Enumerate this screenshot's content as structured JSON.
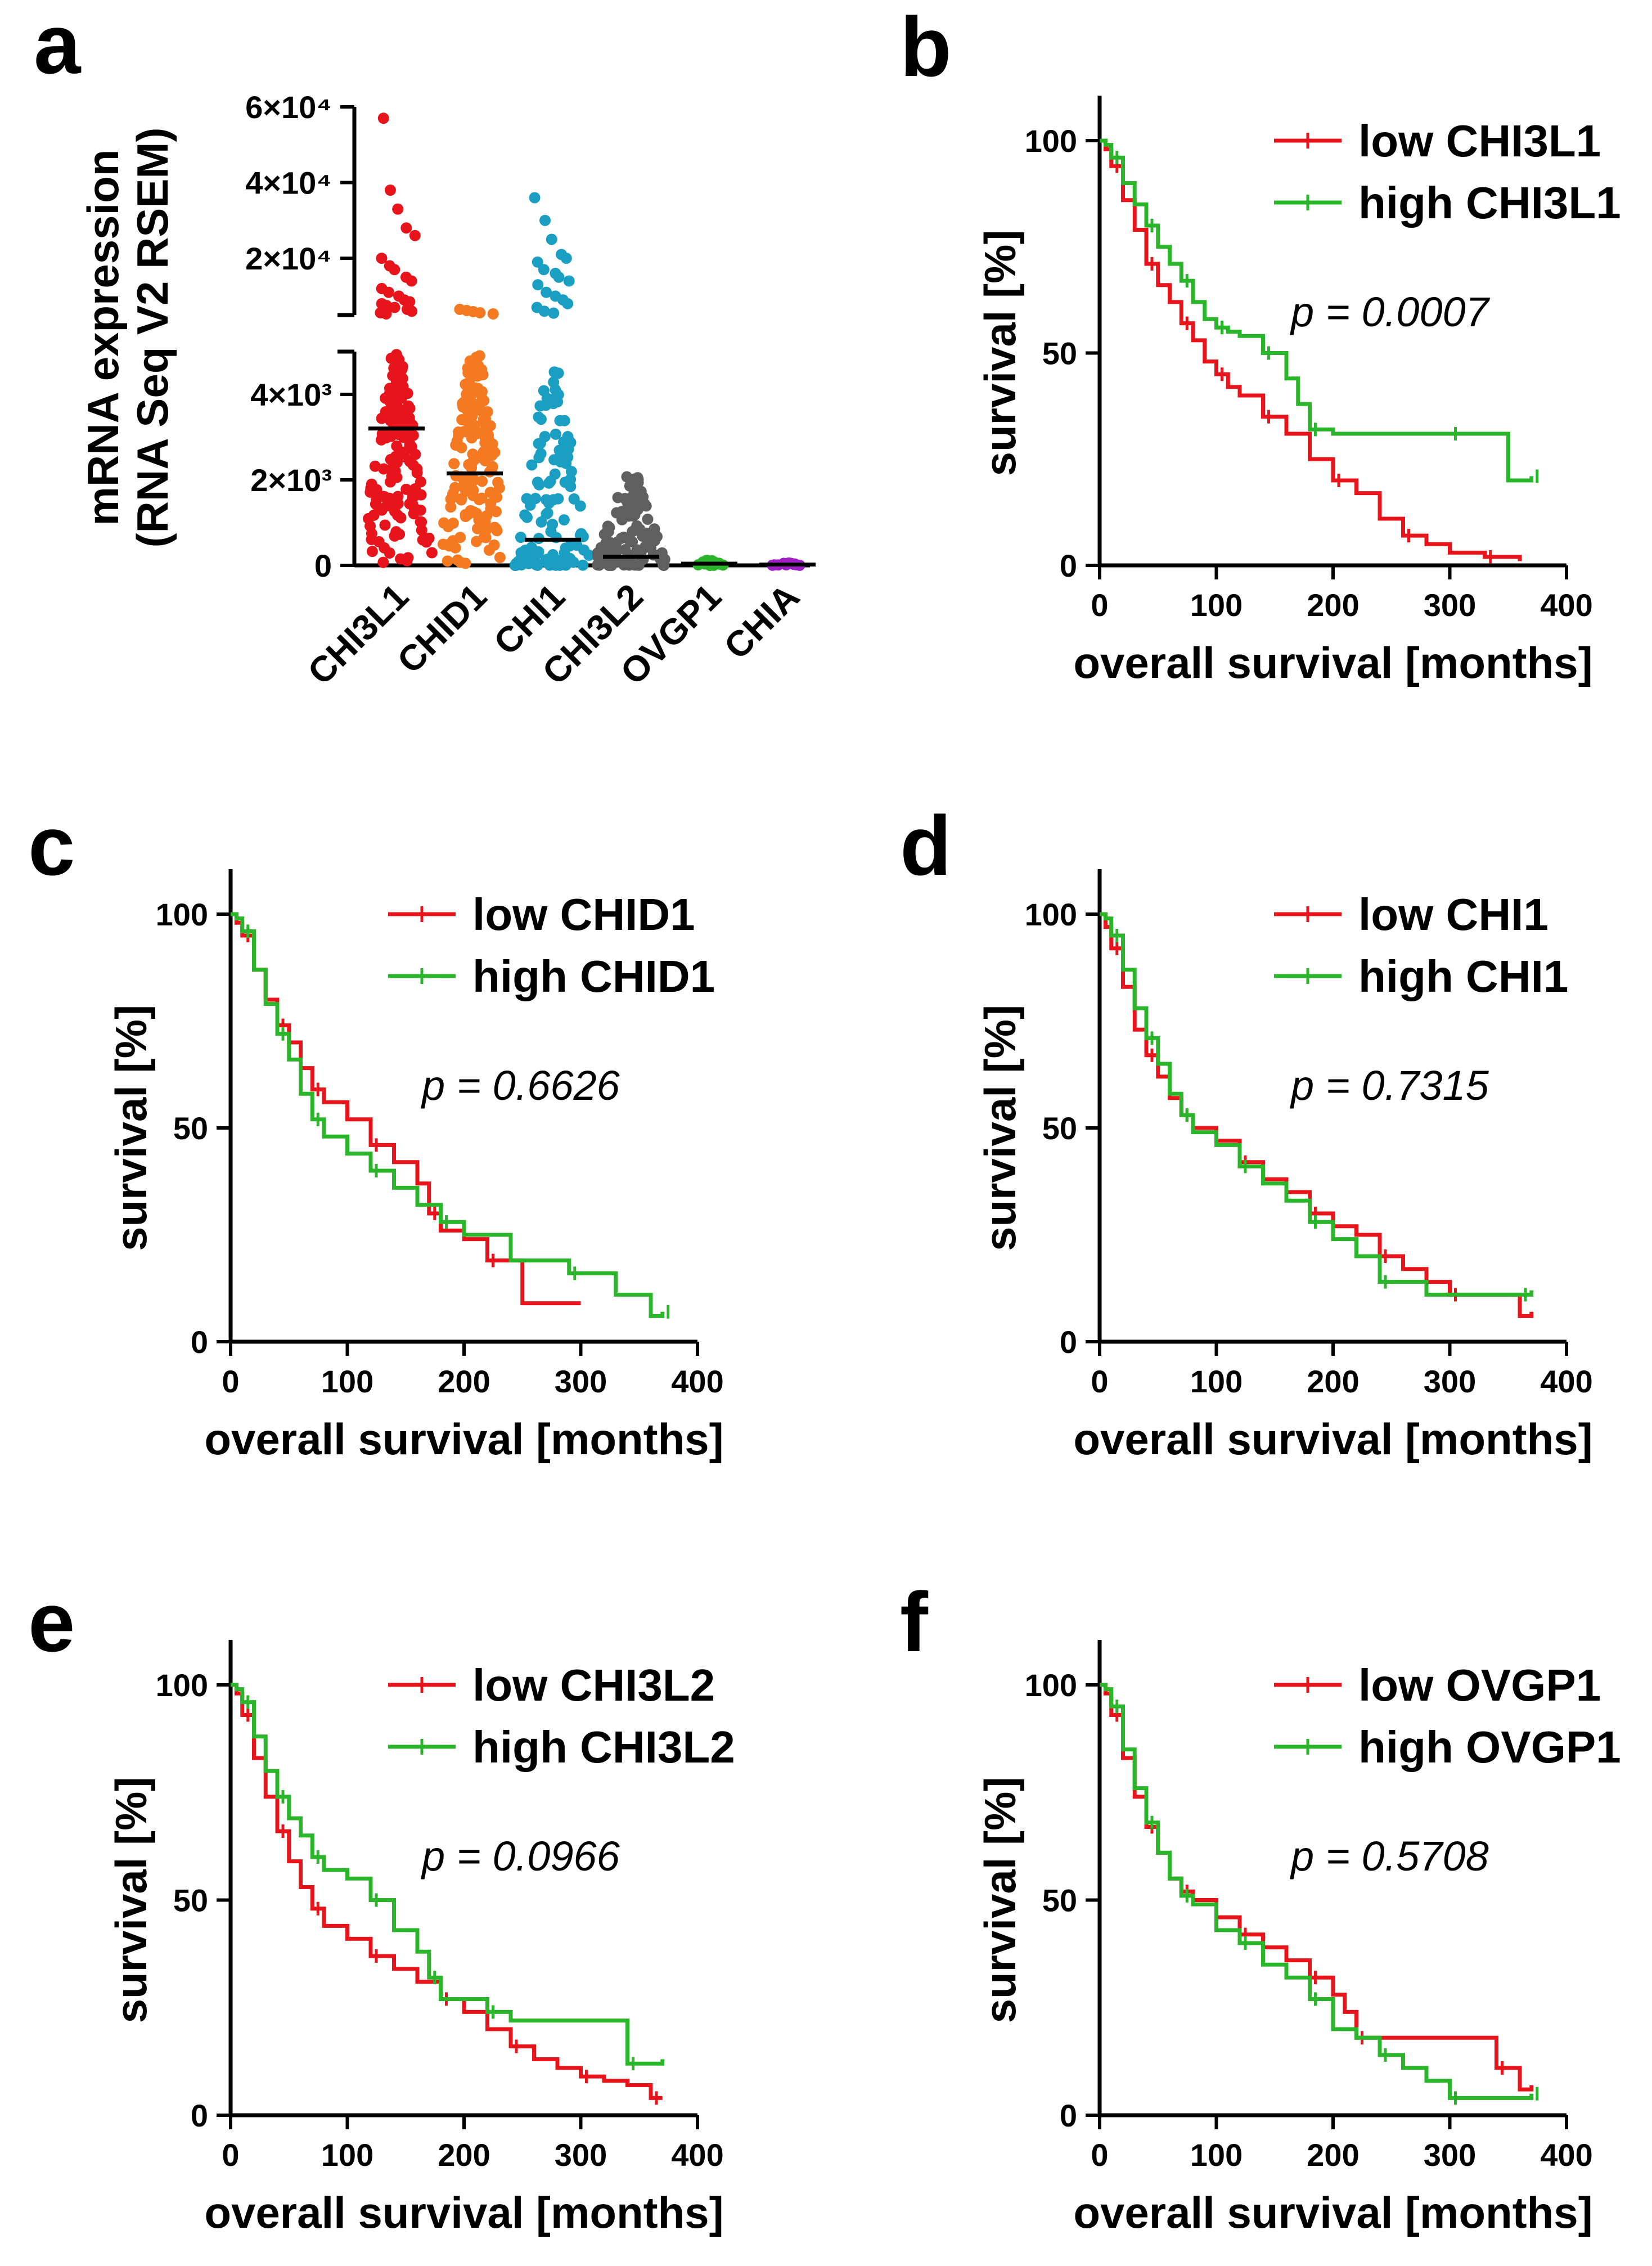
{
  "chart_data": [
    {
      "panel": "a",
      "type": "scatter",
      "ylabel_lines": [
        "mRNA expression",
        "(RNA Seq V2 RSEM)"
      ],
      "categories": [
        "CHI3L1",
        "CHID1",
        "CHI1",
        "CHI3L2",
        "OVGP1",
        "CHIA"
      ],
      "y_axis_lower": {
        "range": [
          0,
          5000
        ],
        "ticks": [
          {
            "value": 0,
            "label": "0"
          },
          {
            "value": 2000,
            "label": "2×10³"
          },
          {
            "value": 4000,
            "label": "4×10³"
          }
        ]
      },
      "y_axis_upper": {
        "range": [
          5000,
          60000
        ],
        "ticks": [
          {
            "value": 20000,
            "label": "2×10⁴"
          },
          {
            "value": 40000,
            "label": "4×10⁴"
          },
          {
            "value": 60000,
            "label": "6×10⁴"
          }
        ]
      },
      "medians": [
        3200,
        2150,
        600,
        200,
        40,
        20
      ],
      "colors": [
        "#e8141b",
        "#f47920",
        "#1a9fc2",
        "#5f5f5f",
        "#2ab52a",
        "#a020c8"
      ],
      "max_values": [
        57000,
        6500,
        36000,
        2200,
        120,
        60
      ],
      "upper_points": [
        [
          57000,
          38000,
          33000,
          28000,
          26000,
          20000,
          18000,
          17000,
          15000,
          14000,
          12000,
          11000,
          10000,
          9000,
          8500,
          8000,
          7500,
          7000,
          6500,
          6000,
          5600,
          5300
        ],
        [
          6500,
          6200,
          5900,
          5600,
          5300
        ],
        [
          36000,
          30000,
          25000,
          21000,
          20000,
          19000,
          17000,
          16000,
          15000,
          14000,
          13000,
          11000,
          10000,
          9000,
          8000,
          7000,
          6000,
          5500
        ]
      ]
    },
    {
      "panel": "b",
      "type": "line",
      "xlabel": "overall survival [months]",
      "ylabel": "survival [%]",
      "xlim": [
        0,
        400
      ],
      "ylim": [
        0,
        100
      ],
      "xticks": [
        0,
        100,
        200,
        300,
        400
      ],
      "yticks": [
        0,
        50,
        100
      ],
      "pvalue": "p = 0.0007",
      "series": [
        {
          "name": "low CHI3L1",
          "color": "#e8141b",
          "x": [
            0,
            5,
            10,
            20,
            30,
            40,
            50,
            60,
            70,
            80,
            90,
            100,
            110,
            120,
            140,
            160,
            180,
            200,
            220,
            240,
            260,
            280,
            300,
            330,
            360
          ],
          "y": [
            100,
            98,
            94,
            86,
            79,
            71,
            66,
            62,
            57,
            53,
            48,
            45,
            42,
            40,
            35,
            31,
            25,
            20,
            17,
            11,
            7,
            5,
            3,
            2,
            1
          ]
        },
        {
          "name": "high CHI3L1",
          "color": "#2ab52a",
          "x": [
            0,
            5,
            10,
            20,
            30,
            40,
            50,
            60,
            70,
            80,
            90,
            100,
            110,
            120,
            140,
            160,
            170,
            180,
            200,
            250,
            300,
            340,
            350,
            370
          ],
          "y": [
            100,
            99,
            96,
            90,
            85,
            80,
            75,
            71,
            67,
            62,
            58,
            56,
            55,
            54,
            50,
            44,
            38,
            32,
            31,
            31,
            31,
            31,
            20,
            21
          ]
        }
      ]
    },
    {
      "panel": "c",
      "type": "line",
      "xlabel": "overall survival [months]",
      "ylabel": "survival [%]",
      "xlim": [
        0,
        400
      ],
      "ylim": [
        0,
        100
      ],
      "xticks": [
        0,
        100,
        200,
        300,
        400
      ],
      "yticks": [
        0,
        50,
        100
      ],
      "pvalue": "p = 0.6626",
      "series": [
        {
          "name": "low CHID1",
          "color": "#e8141b",
          "x": [
            0,
            5,
            10,
            20,
            30,
            40,
            50,
            60,
            70,
            80,
            100,
            120,
            140,
            160,
            170,
            180,
            200,
            220,
            250,
            300
          ],
          "y": [
            100,
            98,
            95,
            87,
            80,
            74,
            70,
            64,
            59,
            56,
            52,
            46,
            42,
            37,
            30,
            26,
            24,
            19,
            9,
            9
          ]
        },
        {
          "name": "high CHID1",
          "color": "#2ab52a",
          "x": [
            0,
            5,
            10,
            20,
            30,
            40,
            50,
            60,
            70,
            80,
            100,
            120,
            140,
            160,
            180,
            200,
            240,
            290,
            330,
            360,
            370
          ],
          "y": [
            100,
            99,
            96,
            87,
            79,
            72,
            66,
            58,
            52,
            48,
            44,
            40,
            36,
            32,
            28,
            25,
            19,
            16,
            11,
            6,
            7
          ]
        }
      ]
    },
    {
      "panel": "d",
      "type": "line",
      "xlabel": "overall survival [months]",
      "ylabel": "survival [%]",
      "xlim": [
        0,
        400
      ],
      "ylim": [
        0,
        100
      ],
      "xticks": [
        0,
        100,
        200,
        300,
        400
      ],
      "yticks": [
        0,
        50,
        100
      ],
      "pvalue": "p = 0.7315",
      "series": [
        {
          "name": "low CHI1",
          "color": "#e8141b",
          "x": [
            0,
            5,
            10,
            20,
            30,
            40,
            50,
            60,
            70,
            80,
            100,
            120,
            140,
            160,
            180,
            200,
            220,
            240,
            260,
            280,
            300,
            360,
            370
          ],
          "y": [
            100,
            97,
            92,
            83,
            73,
            67,
            62,
            57,
            53,
            50,
            47,
            42,
            38,
            35,
            30,
            27,
            25,
            20,
            17,
            14,
            11,
            6,
            7
          ]
        },
        {
          "name": "high CHI1",
          "color": "#2ab52a",
          "x": [
            0,
            5,
            10,
            20,
            30,
            40,
            50,
            60,
            70,
            80,
            100,
            120,
            140,
            160,
            180,
            200,
            220,
            240,
            280,
            300,
            360,
            370
          ],
          "y": [
            100,
            99,
            95,
            87,
            78,
            71,
            65,
            58,
            53,
            49,
            46,
            41,
            37,
            33,
            28,
            24,
            20,
            14,
            11,
            11,
            11,
            12
          ]
        }
      ]
    },
    {
      "panel": "e",
      "type": "line",
      "xlabel": "overall survival [months]",
      "ylabel": "survival [%]",
      "xlim": [
        0,
        400
      ],
      "ylim": [
        0,
        100
      ],
      "xticks": [
        0,
        100,
        200,
        300,
        400
      ],
      "yticks": [
        0,
        50,
        100
      ],
      "pvalue": "p = 0.0966",
      "series": [
        {
          "name": "low CHI3L2",
          "color": "#e8141b",
          "x": [
            0,
            5,
            10,
            20,
            30,
            40,
            50,
            60,
            70,
            80,
            100,
            120,
            140,
            160,
            180,
            200,
            220,
            240,
            260,
            280,
            300,
            320,
            340,
            360,
            370
          ],
          "y": [
            100,
            98,
            93,
            83,
            74,
            66,
            59,
            53,
            48,
            44,
            41,
            37,
            34,
            31,
            27,
            24,
            20,
            16,
            13,
            11,
            9,
            8,
            7,
            4,
            4
          ]
        },
        {
          "name": "high CHI3L2",
          "color": "#2ab52a",
          "x": [
            0,
            5,
            10,
            20,
            30,
            40,
            50,
            60,
            70,
            80,
            100,
            120,
            140,
            160,
            170,
            180,
            200,
            220,
            240,
            280,
            340,
            360,
            370
          ],
          "y": [
            100,
            99,
            96,
            88,
            80,
            74,
            69,
            65,
            60,
            57,
            55,
            50,
            43,
            38,
            32,
            27,
            27,
            24,
            22,
            22,
            12,
            12,
            13
          ]
        }
      ]
    },
    {
      "panel": "f",
      "type": "line",
      "xlabel": "overall survival [months]",
      "ylabel": "survival [%]",
      "xlim": [
        0,
        400
      ],
      "ylim": [
        0,
        100
      ],
      "xticks": [
        0,
        100,
        200,
        300,
        400
      ],
      "yticks": [
        0,
        50,
        100
      ],
      "pvalue": "p = 0.5708",
      "series": [
        {
          "name": "low OVGP1",
          "color": "#e8141b",
          "x": [
            0,
            5,
            10,
            20,
            30,
            40,
            50,
            60,
            70,
            80,
            100,
            120,
            140,
            160,
            180,
            200,
            210,
            220,
            250,
            300,
            340,
            360,
            370
          ],
          "y": [
            100,
            98,
            93,
            83,
            74,
            67,
            61,
            55,
            52,
            50,
            46,
            42,
            39,
            36,
            32,
            28,
            24,
            18,
            18,
            18,
            11,
            6,
            7
          ]
        },
        {
          "name": "high OVGP1",
          "color": "#2ab52a",
          "x": [
            0,
            5,
            10,
            20,
            30,
            40,
            50,
            60,
            70,
            80,
            100,
            120,
            140,
            160,
            180,
            200,
            220,
            240,
            260,
            280,
            300,
            330,
            360,
            370
          ],
          "y": [
            100,
            99,
            95,
            85,
            76,
            68,
            61,
            55,
            51,
            49,
            43,
            40,
            35,
            32,
            27,
            20,
            18,
            14,
            11,
            8,
            4,
            4,
            4,
            5
          ]
        }
      ]
    }
  ]
}
